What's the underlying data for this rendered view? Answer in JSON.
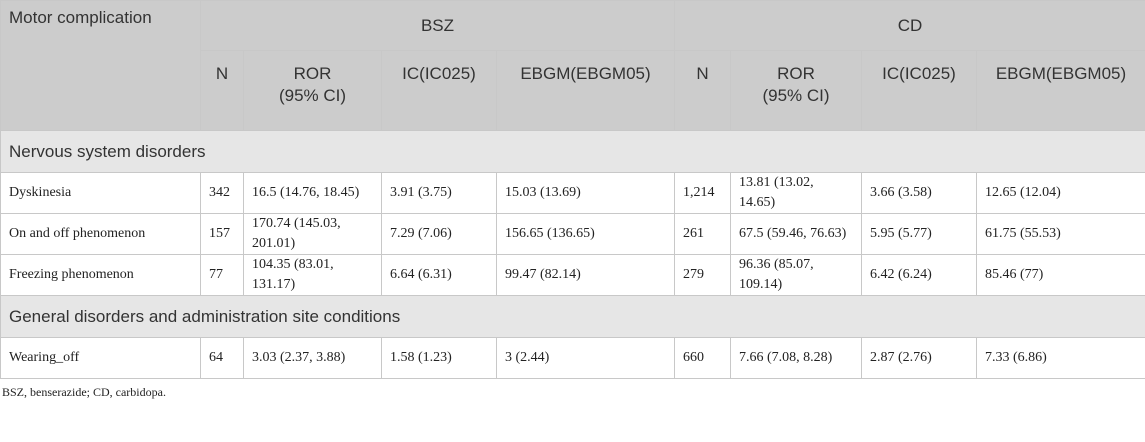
{
  "table": {
    "header": {
      "row_label": "Motor complication",
      "groups": [
        "BSZ",
        "CD"
      ],
      "columns": [
        "N",
        "ROR\n(95% CI)",
        "IC(IC025)",
        "EBGM(EBGM05)",
        "N",
        "ROR\n(95% CI)",
        "IC(IC025)",
        "EBGM(EBGM05)"
      ]
    },
    "sections": [
      {
        "title": "Nervous system disorders",
        "rows": [
          [
            "Dyskinesia",
            "342",
            "16.5 (14.76, 18.45)",
            "3.91 (3.75)",
            "15.03 (13.69)",
            "1,214",
            "13.81 (13.02, 14.65)",
            "3.66 (3.58)",
            "12.65 (12.04)"
          ],
          [
            "On and off phenomenon",
            "157",
            "170.74 (145.03, 201.01)",
            "7.29 (7.06)",
            "156.65 (136.65)",
            "261",
            "67.5 (59.46, 76.63)",
            "5.95 (5.77)",
            "61.75 (55.53)"
          ],
          [
            "Freezing phenomenon",
            "77",
            "104.35 (83.01, 131.17)",
            "6.64 (6.31)",
            "99.47 (82.14)",
            "279",
            "96.36 (85.07, 109.14)",
            "6.42 (6.24)",
            "85.46 (77)"
          ]
        ]
      },
      {
        "title": "General disorders and administration site conditions",
        "rows": [
          [
            "Wearing_off",
            "64",
            "3.03 (2.37, 3.88)",
            "1.58 (1.23)",
            "3 (2.44)",
            "660",
            "7.66 (7.08, 8.28)",
            "2.87 (2.76)",
            "7.33 (6.86)"
          ]
        ]
      }
    ],
    "footnote": "BSZ, benserazide; CD, carbidopa."
  }
}
